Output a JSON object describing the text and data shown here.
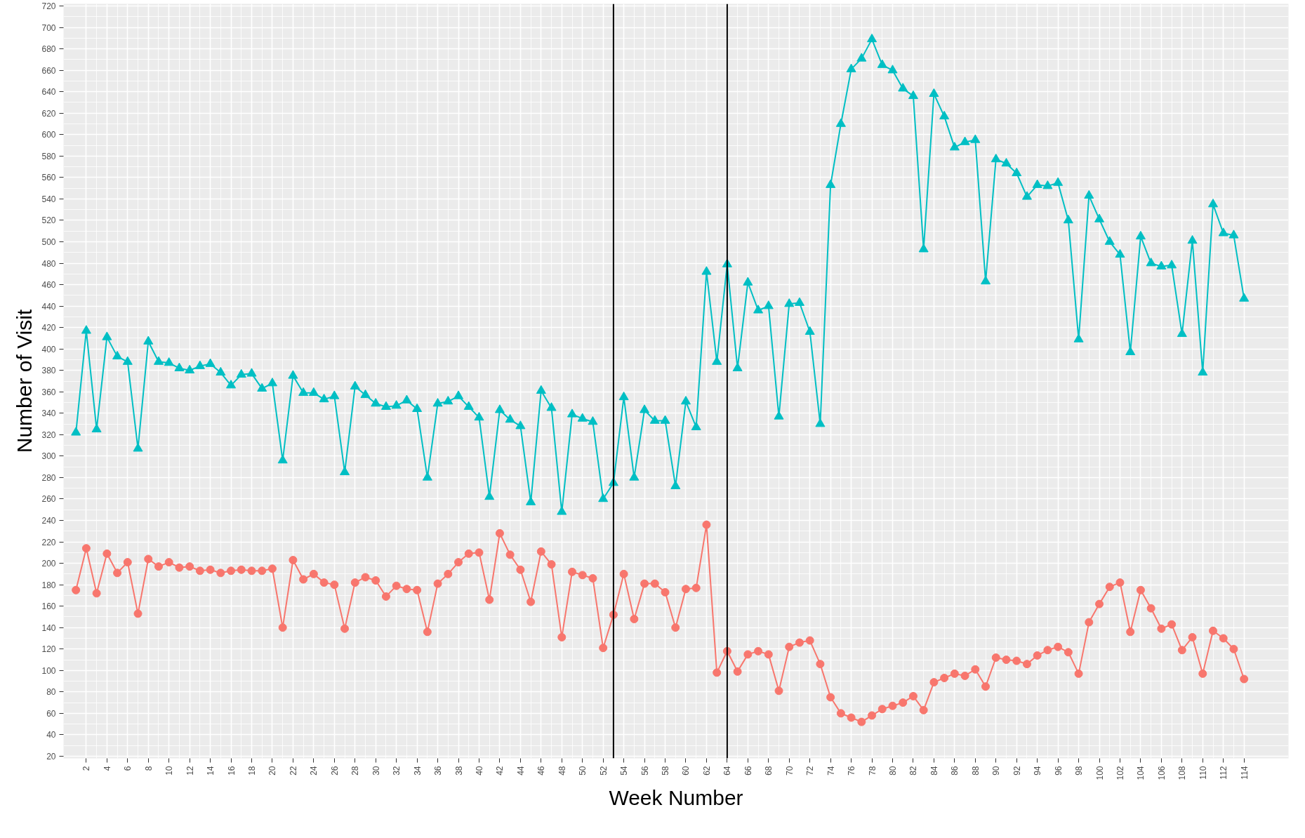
{
  "chart_data": {
    "type": "line",
    "xlabel": "Week Number",
    "ylabel": "Number of Visit",
    "x": [
      1,
      2,
      3,
      4,
      5,
      6,
      7,
      8,
      9,
      10,
      11,
      12,
      13,
      14,
      15,
      16,
      17,
      18,
      19,
      20,
      21,
      22,
      23,
      24,
      25,
      26,
      27,
      28,
      29,
      30,
      31,
      32,
      33,
      34,
      35,
      36,
      37,
      38,
      39,
      40,
      41,
      42,
      43,
      44,
      45,
      46,
      47,
      48,
      49,
      50,
      51,
      52,
      53,
      54,
      55,
      56,
      57,
      58,
      59,
      60,
      61,
      62,
      63,
      64,
      65,
      66,
      67,
      68,
      69,
      70,
      71,
      72,
      73,
      74,
      75,
      76,
      77,
      78,
      79,
      80,
      81,
      82,
      83,
      84,
      85,
      86,
      87,
      88,
      89,
      90,
      91,
      92,
      93,
      94,
      95,
      96,
      97,
      98,
      99,
      100,
      101,
      102,
      103,
      104,
      105,
      106,
      107,
      108,
      109,
      110,
      111,
      112,
      113,
      114
    ],
    "series": [
      {
        "color": "#f8766d",
        "marker": "circle",
        "values": [
          175,
          214,
          172,
          209,
          191,
          201,
          153,
          204,
          197,
          201,
          196,
          197,
          193,
          194,
          191,
          193,
          194,
          193,
          193,
          195,
          140,
          203,
          185,
          190,
          182,
          180,
          139,
          182,
          187,
          184,
          169,
          179,
          176,
          175,
          136,
          181,
          190,
          201,
          209,
          210,
          166,
          228,
          208,
          194,
          164,
          211,
          199,
          131,
          192,
          189,
          186,
          121,
          152,
          190,
          148,
          181,
          181,
          173,
          140,
          176,
          177,
          236,
          98,
          118,
          99,
          115,
          118,
          115,
          81,
          122,
          126,
          128,
          106,
          75,
          60,
          56,
          52,
          58,
          64,
          67,
          70,
          76,
          63,
          89,
          93,
          97,
          95,
          101,
          85,
          112,
          110,
          109,
          106,
          114,
          119,
          122,
          117,
          97,
          145,
          162,
          178,
          182,
          136,
          175,
          158,
          139,
          143,
          119,
          131,
          97,
          137,
          130,
          120,
          92
        ]
      },
      {
        "color": "#00bfc4",
        "marker": "triangle",
        "values": [
          322,
          417,
          325,
          411,
          393,
          388,
          307,
          407,
          388,
          387,
          382,
          380,
          384,
          386,
          378,
          366,
          376,
          377,
          363,
          368,
          296,
          375,
          359,
          359,
          353,
          356,
          285,
          365,
          357,
          349,
          346,
          347,
          352,
          344,
          280,
          349,
          351,
          356,
          346,
          336,
          262,
          343,
          334,
          328,
          257,
          361,
          345,
          248,
          339,
          335,
          332,
          260,
          275,
          355,
          280,
          343,
          333,
          333,
          272,
          351,
          327,
          472,
          388,
          479,
          382,
          462,
          436,
          440,
          337,
          442,
          443,
          416,
          330,
          553,
          610,
          661,
          671,
          689,
          665,
          660,
          643,
          636,
          493,
          638,
          617,
          588,
          593,
          595,
          463,
          577,
          573,
          564,
          542,
          553,
          552,
          555,
          520,
          409,
          543,
          521,
          500,
          488,
          397,
          505,
          480,
          477,
          478,
          414,
          501,
          378,
          535,
          508,
          506,
          447
        ]
      }
    ],
    "xlim": [
      -0.2,
      118.3
    ],
    "ylim": [
      18,
      722
    ],
    "xticks": [
      2,
      4,
      6,
      8,
      10,
      12,
      14,
      16,
      18,
      20,
      22,
      24,
      26,
      28,
      30,
      32,
      34,
      36,
      38,
      40,
      42,
      44,
      46,
      48,
      50,
      52,
      54,
      56,
      58,
      60,
      62,
      64,
      66,
      68,
      70,
      72,
      74,
      76,
      78,
      80,
      82,
      84,
      86,
      88,
      90,
      92,
      94,
      96,
      98,
      100,
      102,
      104,
      106,
      108,
      110,
      112,
      114
    ],
    "yticks": [
      20,
      40,
      60,
      80,
      100,
      120,
      140,
      160,
      180,
      200,
      220,
      240,
      260,
      280,
      300,
      320,
      340,
      360,
      380,
      400,
      420,
      440,
      460,
      480,
      500,
      520,
      540,
      560,
      580,
      600,
      620,
      640,
      660,
      680,
      700,
      720
    ],
    "ref_lines": [
      {
        "axis": "x",
        "value": 53,
        "color": "#000000"
      },
      {
        "axis": "x",
        "value": 64,
        "color": "#000000"
      }
    ],
    "grid": true
  }
}
